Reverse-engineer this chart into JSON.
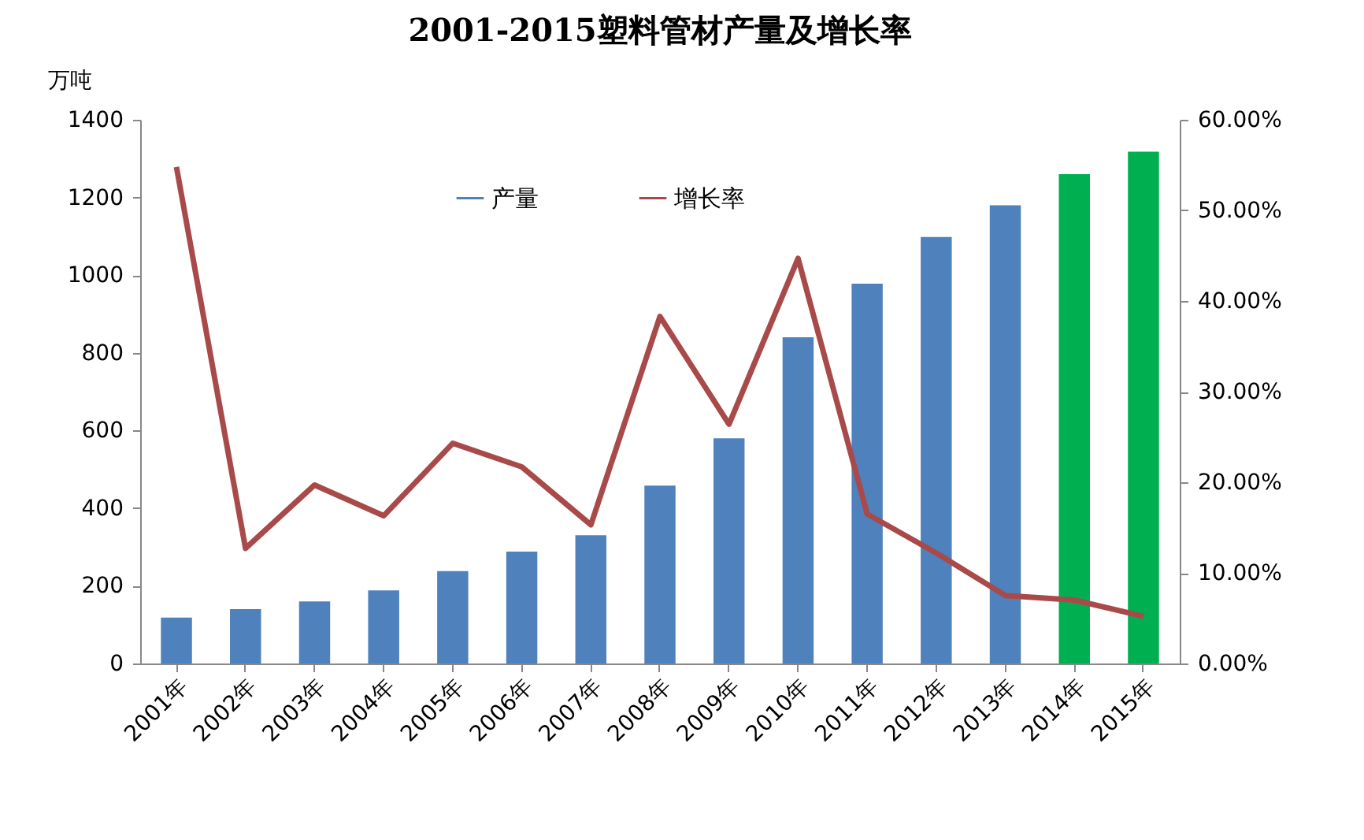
{
  "chart_data": {
    "type": "bar",
    "title": "2001-2015塑料管材产量及增长率",
    "ylabel": "万吨",
    "categories": [
      "2001年",
      "2002年",
      "2003年",
      "2004年",
      "2005年",
      "2006年",
      "2007年",
      "2008年",
      "2009年",
      "2010年",
      "2011年",
      "2012年",
      "2013年",
      "2014年",
      "2015年"
    ],
    "series": [
      {
        "name": "产量",
        "color": "#4f81bd",
        "colors": [
          "#4f81bd",
          "#4f81bd",
          "#4f81bd",
          "#4f81bd",
          "#4f81bd",
          "#4f81bd",
          "#4f81bd",
          "#4f81bd",
          "#4f81bd",
          "#4f81bd",
          "#4f81bd",
          "#4f81bd",
          "#4f81bd",
          "#00b050",
          "#00b050"
        ],
        "values": [
          118,
          140,
          160,
          188,
          238,
          288,
          330,
          458,
          580,
          840,
          978,
          1098,
          1180,
          1260,
          1318
        ]
      },
      {
        "name": "增长率",
        "type": "line",
        "axis": "y2",
        "color": "#a94a4a",
        "values": [
          54.8,
          12.7,
          19.7,
          16.3,
          24.3,
          21.7,
          15.3,
          38.3,
          26.4,
          44.7,
          16.5,
          12.2,
          7.5,
          7.0,
          5.2
        ]
      }
    ],
    "ylim": [
      0,
      1400
    ],
    "yticks": [
      0,
      200,
      400,
      600,
      800,
      1000,
      1200,
      1400
    ],
    "y2lim": [
      0,
      60
    ],
    "y2ticks": [
      {
        "value": 0,
        "label": "0.00%"
      },
      {
        "value": 10,
        "label": "10.00%"
      },
      {
        "value": 20,
        "label": "20.00%"
      },
      {
        "value": 30,
        "label": "30.00%"
      },
      {
        "value": 40,
        "label": "40.00%"
      },
      {
        "value": 50,
        "label": "50.00%"
      },
      {
        "value": 60,
        "label": "60.00%"
      }
    ],
    "legend": "top",
    "grid": false
  }
}
